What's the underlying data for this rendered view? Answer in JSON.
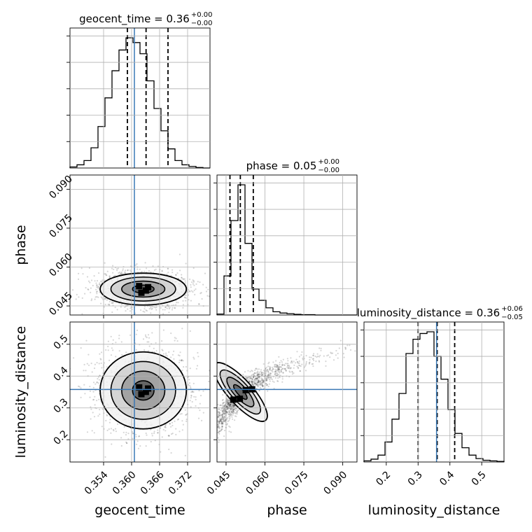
{
  "chart_data": {
    "type": "corner",
    "parameters": [
      {
        "name": "geocent_time",
        "axis_label": "geocent_time",
        "title": "geocent_time = 0.36",
        "title_plus": "+0.00",
        "title_minus": "−0.00",
        "range": [
          0.3468,
          0.3768
        ],
        "ticks": [
          0.354,
          0.36,
          0.366,
          0.372
        ],
        "tick_labels": [
          "0.354",
          "0.360",
          "0.366",
          "0.372"
        ],
        "truth": 0.3606,
        "quantiles": [
          0.3591,
          0.3631,
          0.3678
        ],
        "hist_edges": [
          0.3468,
          0.3483,
          0.3498,
          0.3513,
          0.3528,
          0.3543,
          0.3558,
          0.3573,
          0.3588,
          0.3603,
          0.3618,
          0.3633,
          0.3648,
          0.3663,
          0.3678,
          0.3693,
          0.3708,
          0.3723,
          0.3738,
          0.3753,
          0.3768
        ],
        "hist_counts": [
          2,
          6,
          14,
          38,
          78,
          132,
          183,
          222,
          245,
          236,
          215,
          164,
          112,
          70,
          36,
          14,
          6,
          3,
          1,
          0
        ]
      },
      {
        "name": "phase",
        "axis_label": "phase",
        "title": "phase = 0.05",
        "title_plus": "+0.00",
        "title_minus": "−0.00",
        "range": [
          0.0415,
          0.0955
        ],
        "ticks": [
          0.045,
          0.06,
          0.075,
          0.09
        ],
        "tick_labels": [
          "0.045",
          "0.060",
          "0.075",
          "0.090"
        ],
        "truth": null,
        "quantiles": [
          0.0465,
          0.0505,
          0.0555
        ],
        "hist_edges": [
          0.0415,
          0.0442,
          0.0469,
          0.0496,
          0.0523,
          0.055,
          0.0577,
          0.0604,
          0.0631,
          0.0658,
          0.0685,
          0.0712,
          0.0739,
          0.0766,
          0.0793,
          0.082,
          0.0847,
          0.0874,
          0.0901,
          0.0928,
          0.0955
        ],
        "hist_counts": [
          3,
          120,
          290,
          400,
          220,
          80,
          45,
          22,
          10,
          6,
          4,
          2,
          1,
          1,
          0,
          0,
          0,
          0,
          0,
          0
        ]
      },
      {
        "name": "luminosity_distance",
        "axis_label": "luminosity_distance",
        "title": "luminosity_distance = 0.36",
        "title_plus": "+0.06",
        "title_minus": "−0.05",
        "range": [
          0.13,
          0.57
        ],
        "ticks": [
          0.2,
          0.3,
          0.4,
          0.5
        ],
        "tick_labels": [
          "0.2",
          "0.3",
          "0.4",
          "0.5"
        ],
        "truth": 0.358,
        "quantiles": [
          0.3,
          0.36,
          0.415
        ],
        "hist_edges": [
          0.13,
          0.152,
          0.174,
          0.196,
          0.218,
          0.24,
          0.262,
          0.284,
          0.306,
          0.328,
          0.35,
          0.372,
          0.394,
          0.416,
          0.438,
          0.46,
          0.482,
          0.504,
          0.526,
          0.548,
          0.57
        ],
        "hist_counts": [
          2,
          5,
          12,
          35,
          75,
          120,
          190,
          215,
          225,
          228,
          185,
          145,
          92,
          50,
          25,
          12,
          6,
          3,
          2,
          1
        ]
      }
    ],
    "joint": [
      {
        "x": "geocent_time",
        "y": "phase",
        "center": [
          0.3625,
          0.0515
        ],
        "spread": [
          0.0042,
          0.0028
        ],
        "correlation": 0.0
      },
      {
        "x": "geocent_time",
        "y": "luminosity_distance",
        "center": [
          0.3625,
          0.355
        ],
        "spread": [
          0.0042,
          0.055
        ],
        "correlation": 0.0
      },
      {
        "x": "phase",
        "y": "luminosity_distance",
        "center": [
          0.0505,
          0.35
        ],
        "spread": [
          0.0035,
          0.05
        ],
        "correlation": -0.93
      }
    ],
    "truth_color": "#3a78b5",
    "hist_color": "#000000",
    "grid": true
  }
}
